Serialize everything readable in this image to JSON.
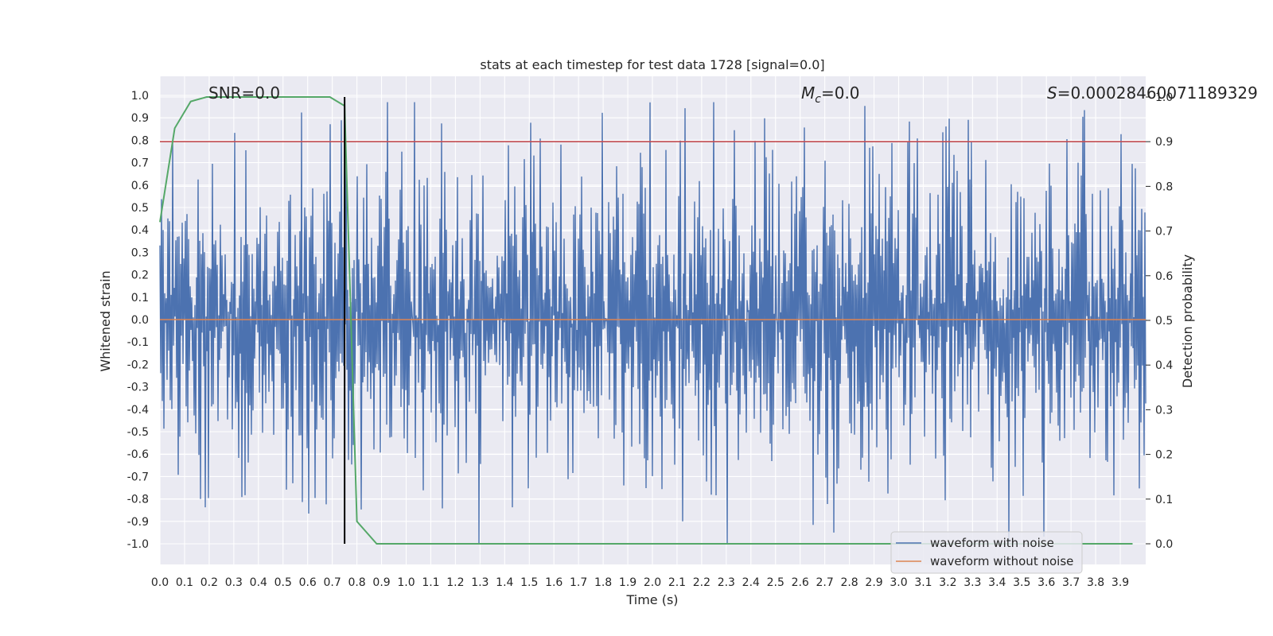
{
  "chart_data": {
    "type": "line",
    "title": "stats at each timestep for test data 1728 [signal=0.0]",
    "xlabel": "Time (s)",
    "ylabel": "Whitened strain",
    "y2label": "Detection probability",
    "xlim": [
      0.0,
      4.0
    ],
    "ylim": [
      -1.1,
      1.1
    ],
    "y2lim": [
      -0.05,
      1.0
    ],
    "x_ticks": [
      "0.0",
      "0.1",
      "0.2",
      "0.3",
      "0.4",
      "0.5",
      "0.6",
      "0.7",
      "0.8",
      "0.9",
      "1.0",
      "1.1",
      "1.2",
      "1.3",
      "1.4",
      "1.5",
      "1.6",
      "1.7",
      "1.8",
      "1.9",
      "2.0",
      "2.1",
      "2.2",
      "2.3",
      "2.4",
      "2.5",
      "2.6",
      "2.7",
      "2.8",
      "2.9",
      "3.0",
      "3.1",
      "3.2",
      "3.3",
      "3.4",
      "3.5",
      "3.6",
      "3.7",
      "3.8",
      "3.9"
    ],
    "y_ticks": [
      "1.0",
      "0.9",
      "0.8",
      "0.7",
      "0.6",
      "0.5",
      "0.4",
      "0.3",
      "0.2",
      "0.1",
      "0.0",
      "-0.1",
      "-0.2",
      "-0.3",
      "-0.4",
      "-0.5",
      "-0.6",
      "-0.7",
      "-0.8",
      "-0.9",
      "-1.0"
    ],
    "y2_ticks": [
      "1.0",
      "0.9",
      "0.8",
      "0.7",
      "0.6",
      "0.5",
      "0.4",
      "0.3",
      "0.2",
      "0.1",
      "0.0"
    ],
    "annotations": {
      "snr": "SNR=0.0",
      "mc_symbol": "M",
      "mc_sub": "c",
      "mc_value": "=0.0",
      "s_symbol": "S",
      "s_value": "=0.00028460071189329"
    },
    "legend": {
      "placement": "lower-right",
      "entries": [
        "waveform with noise",
        "waveform without noise"
      ]
    },
    "colors": {
      "noise": "#4c72b0",
      "clean": "#dd8452",
      "probability": "#55a868",
      "threshold": "#c44e52",
      "marker": "#000000",
      "plot_bg": "#eaeaf2",
      "grid": "#ffffff"
    },
    "series": [
      {
        "name": "waveform with noise",
        "kind": "noise",
        "amplitude_envelope": [
          -1.0,
          0.97
        ],
        "samples": 4096,
        "seed": 1728
      },
      {
        "name": "waveform without noise",
        "x": [
          0.0,
          4.0
        ],
        "values": [
          0.0,
          0.0
        ]
      },
      {
        "name": "detection probability",
        "axis": "y2",
        "x": [
          0.0,
          0.06,
          0.125,
          0.19,
          0.25,
          0.5,
          0.69,
          0.75,
          0.8,
          0.88,
          0.94,
          1.0,
          2.0,
          3.0,
          3.95
        ],
        "values": [
          0.72,
          0.93,
          0.99,
          1.0,
          1.0,
          1.0,
          1.0,
          0.98,
          0.05,
          0.0,
          0.0,
          0.0,
          0.0,
          0.0,
          0.0
        ]
      },
      {
        "name": "threshold",
        "axis": "y2",
        "x": [
          0.0,
          4.0
        ],
        "values": [
          0.9,
          0.9
        ]
      },
      {
        "name": "event time",
        "kind": "vline",
        "x": 0.75,
        "range": [
          0.0,
          1.0
        ]
      }
    ]
  }
}
